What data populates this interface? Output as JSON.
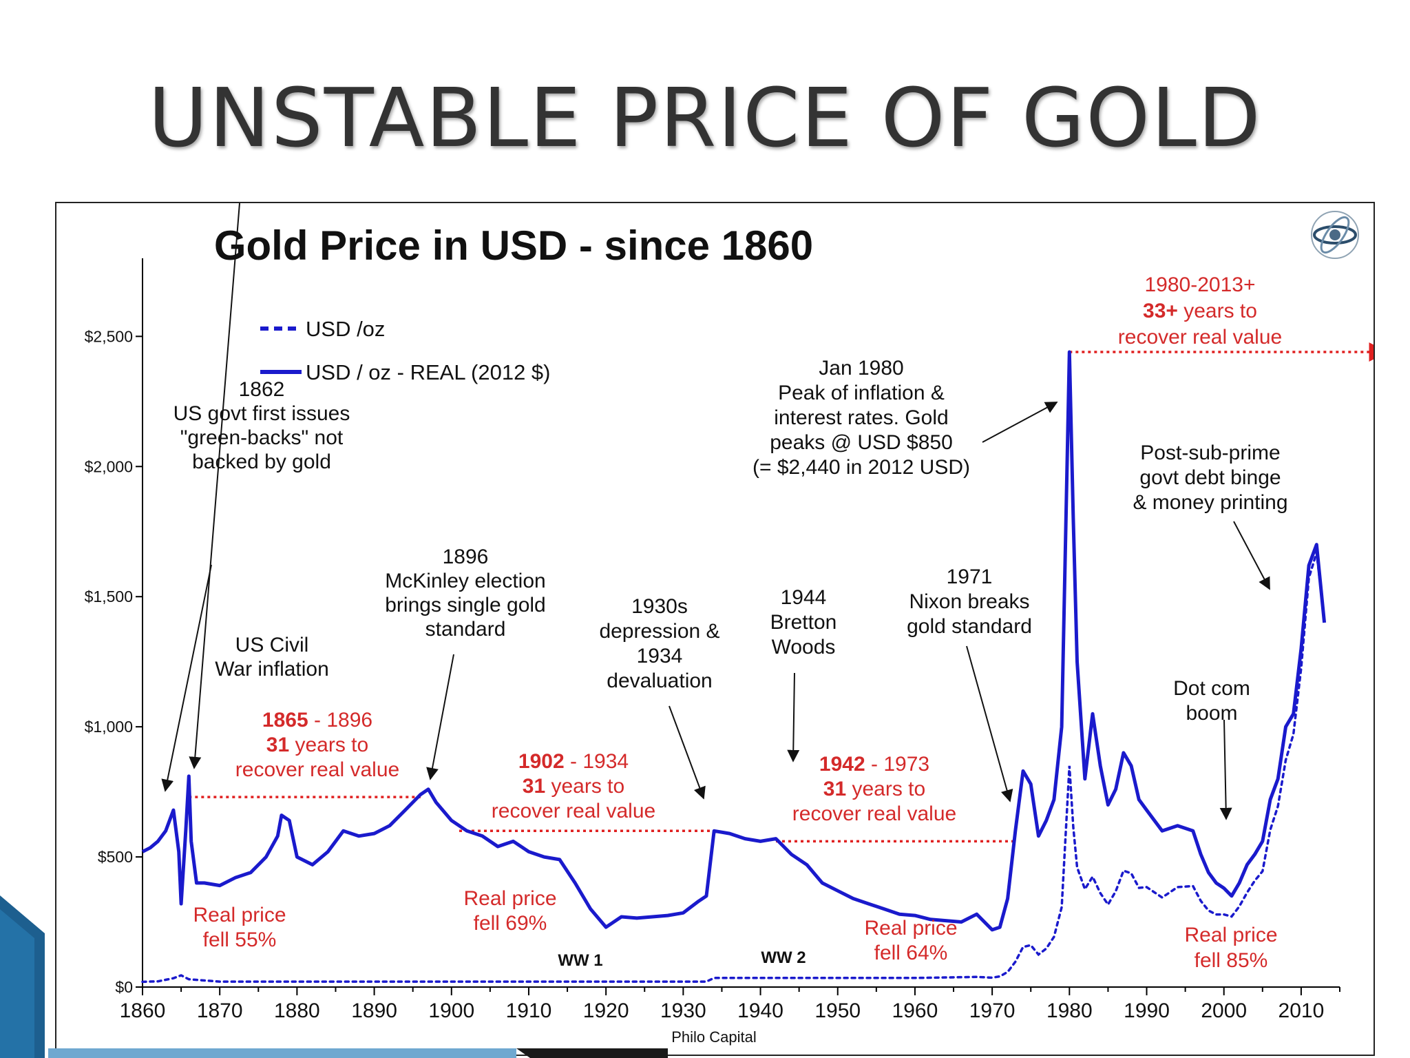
{
  "slide": {
    "title": "UNSTABLE PRICE OF GOLD"
  },
  "colors": {
    "series_real": "#1a1acc",
    "series_nominal": "#1a1acc",
    "annotation_red": "#d42a2a",
    "annotation_black": "#111111",
    "title_text": "#333333",
    "slide_accent": "#1d5f8f"
  },
  "icons": {
    "logo": "philo-capital-logo-icon"
  },
  "chart_data": {
    "type": "line",
    "title": "Gold Price in USD - since 1860",
    "source": "Philo Capital",
    "xlim": [
      1860,
      2015
    ],
    "ylim": [
      0,
      2800
    ],
    "x_ticks": [
      1860,
      1870,
      1880,
      1890,
      1900,
      1910,
      1920,
      1930,
      1940,
      1950,
      1960,
      1970,
      1980,
      1990,
      2000,
      2010
    ],
    "y_ticks": [
      {
        "value": 0,
        "label": "$0"
      },
      {
        "value": 500,
        "label": "$500"
      },
      {
        "value": 1000,
        "label": "$1,000"
      },
      {
        "value": 1500,
        "label": "$1,500"
      },
      {
        "value": 2000,
        "label": "$2,000"
      },
      {
        "value": 2500,
        "label": "$2,500"
      }
    ],
    "grid": false,
    "legend_position": "top-left",
    "series": [
      {
        "name": "USD /oz",
        "style": "dotted",
        "points": [
          [
            1860,
            20
          ],
          [
            1862,
            22
          ],
          [
            1864,
            34
          ],
          [
            1865,
            45
          ],
          [
            1866,
            30
          ],
          [
            1870,
            21
          ],
          [
            1880,
            21
          ],
          [
            1890,
            21
          ],
          [
            1900,
            21
          ],
          [
            1910,
            21
          ],
          [
            1920,
            21
          ],
          [
            1930,
            21
          ],
          [
            1933,
            21
          ],
          [
            1934,
            35
          ],
          [
            1940,
            35
          ],
          [
            1950,
            35
          ],
          [
            1960,
            35
          ],
          [
            1968,
            39
          ],
          [
            1970,
            36
          ],
          [
            1971,
            41
          ],
          [
            1972,
            58
          ],
          [
            1973,
            97
          ],
          [
            1974,
            154
          ],
          [
            1975,
            161
          ],
          [
            1976,
            125
          ],
          [
            1977,
            148
          ],
          [
            1978,
            193
          ],
          [
            1979,
            307
          ],
          [
            1980,
            850
          ],
          [
            1980.5,
            615
          ],
          [
            1981,
            460
          ],
          [
            1982,
            376
          ],
          [
            1983,
            424
          ],
          [
            1984,
            361
          ],
          [
            1985,
            317
          ],
          [
            1986,
            368
          ],
          [
            1987,
            447
          ],
          [
            1988,
            437
          ],
          [
            1989,
            381
          ],
          [
            1990,
            384
          ],
          [
            1992,
            344
          ],
          [
            1994,
            384
          ],
          [
            1996,
            388
          ],
          [
            1997,
            331
          ],
          [
            1998,
            294
          ],
          [
            1999,
            279
          ],
          [
            2000,
            279
          ],
          [
            2001,
            271
          ],
          [
            2002,
            310
          ],
          [
            2003,
            363
          ],
          [
            2004,
            409
          ],
          [
            2005,
            445
          ],
          [
            2006,
            604
          ],
          [
            2007,
            695
          ],
          [
            2008,
            872
          ],
          [
            2009,
            972
          ],
          [
            2010,
            1225
          ],
          [
            2011,
            1572
          ],
          [
            2012,
            1669
          ],
          [
            2013,
            1411
          ]
        ]
      },
      {
        "name": "USD / oz - REAL (2012 $)",
        "style": "solid",
        "points": [
          [
            1860,
            520
          ],
          [
            1861,
            535
          ],
          [
            1862,
            560
          ],
          [
            1863,
            600
          ],
          [
            1864,
            680
          ],
          [
            1864.7,
            520
          ],
          [
            1865,
            320
          ],
          [
            1865.6,
            600
          ],
          [
            1866,
            810
          ],
          [
            1866.3,
            560
          ],
          [
            1867,
            400
          ],
          [
            1868,
            400
          ],
          [
            1870,
            390
          ],
          [
            1872,
            420
          ],
          [
            1874,
            440
          ],
          [
            1876,
            500
          ],
          [
            1877.5,
            580
          ],
          [
            1878,
            660
          ],
          [
            1879,
            640
          ],
          [
            1880,
            500
          ],
          [
            1882,
            470
          ],
          [
            1884,
            520
          ],
          [
            1886,
            600
          ],
          [
            1888,
            580
          ],
          [
            1890,
            590
          ],
          [
            1892,
            620
          ],
          [
            1894,
            680
          ],
          [
            1896,
            740
          ],
          [
            1897,
            760
          ],
          [
            1898,
            710
          ],
          [
            1900,
            640
          ],
          [
            1902,
            600
          ],
          [
            1904,
            580
          ],
          [
            1906,
            540
          ],
          [
            1908,
            560
          ],
          [
            1910,
            520
          ],
          [
            1912,
            500
          ],
          [
            1914,
            490
          ],
          [
            1916,
            400
          ],
          [
            1918,
            300
          ],
          [
            1920,
            230
          ],
          [
            1922,
            270
          ],
          [
            1924,
            265
          ],
          [
            1926,
            270
          ],
          [
            1928,
            275
          ],
          [
            1930,
            285
          ],
          [
            1932,
            330
          ],
          [
            1933,
            350
          ],
          [
            1934,
            600
          ],
          [
            1936,
            590
          ],
          [
            1938,
            570
          ],
          [
            1940,
            560
          ],
          [
            1942,
            570
          ],
          [
            1944,
            510
          ],
          [
            1946,
            470
          ],
          [
            1948,
            400
          ],
          [
            1950,
            370
          ],
          [
            1952,
            340
          ],
          [
            1954,
            320
          ],
          [
            1956,
            300
          ],
          [
            1958,
            280
          ],
          [
            1960,
            275
          ],
          [
            1962,
            260
          ],
          [
            1964,
            255
          ],
          [
            1966,
            250
          ],
          [
            1968,
            280
          ],
          [
            1970,
            220
          ],
          [
            1971,
            230
          ],
          [
            1972,
            340
          ],
          [
            1973,
            600
          ],
          [
            1974,
            830
          ],
          [
            1975,
            780
          ],
          [
            1976,
            580
          ],
          [
            1977,
            640
          ],
          [
            1978,
            720
          ],
          [
            1979,
            1000
          ],
          [
            1980,
            2440
          ],
          [
            1980.5,
            1800
          ],
          [
            1981,
            1250
          ],
          [
            1982,
            800
          ],
          [
            1983,
            1050
          ],
          [
            1984,
            850
          ],
          [
            1985,
            700
          ],
          [
            1986,
            760
          ],
          [
            1987,
            900
          ],
          [
            1988,
            850
          ],
          [
            1989,
            720
          ],
          [
            1990,
            680
          ],
          [
            1992,
            600
          ],
          [
            1994,
            620
          ],
          [
            1996,
            600
          ],
          [
            1997,
            510
          ],
          [
            1998,
            440
          ],
          [
            1999,
            400
          ],
          [
            2000,
            380
          ],
          [
            2001,
            350
          ],
          [
            2002,
            400
          ],
          [
            2003,
            470
          ],
          [
            2004,
            510
          ],
          [
            2005,
            560
          ],
          [
            2006,
            720
          ],
          [
            2007,
            800
          ],
          [
            2008,
            1000
          ],
          [
            2009,
            1050
          ],
          [
            2010,
            1300
          ],
          [
            2011,
            1620
          ],
          [
            2012,
            1700
          ],
          [
            2013,
            1400
          ]
        ]
      }
    ],
    "annotations": [
      {
        "key": "a1862",
        "lines": [
          "1862",
          "US govt first issues",
          "\"green-backs\" not",
          "backed by gold"
        ],
        "color": "black"
      },
      {
        "key": "civil_war",
        "lines": [
          "US Civil",
          "War inflation"
        ],
        "color": "black"
      },
      {
        "key": "a1896",
        "lines": [
          "1896",
          "McKinley election",
          "brings single gold",
          "standard"
        ],
        "color": "black"
      },
      {
        "key": "a1930s",
        "lines": [
          "1930s",
          "depression &",
          "1934",
          "devaluation"
        ],
        "color": "black"
      },
      {
        "key": "a1944",
        "lines": [
          "1944",
          "Bretton",
          "Woods"
        ],
        "color": "black"
      },
      {
        "key": "a1971",
        "lines": [
          "1971",
          "Nixon breaks",
          "gold standard"
        ],
        "color": "black"
      },
      {
        "key": "jan1980",
        "lines": [
          "Jan 1980",
          "Peak of inflation &",
          "interest rates. Gold",
          "peaks @ USD $850",
          "(= $2,440 in 2012 USD)"
        ],
        "color": "black"
      },
      {
        "key": "postsub",
        "lines": [
          "Post-sub-prime",
          "govt debt binge",
          "& money printing"
        ],
        "color": "black"
      },
      {
        "key": "dotcom",
        "lines": [
          "Dot com",
          "boom"
        ],
        "color": "black"
      },
      {
        "key": "r1865",
        "lines": [
          "1865 - 1896",
          "31 years to",
          "recover real value"
        ],
        "color": "red"
      },
      {
        "key": "r1902",
        "lines": [
          "1902 - 1934",
          "31 years to",
          "recover real value"
        ],
        "color": "red"
      },
      {
        "key": "r1942",
        "lines": [
          "1942 - 1973",
          "31 years to",
          "recover real value"
        ],
        "color": "red"
      },
      {
        "key": "r1980",
        "lines": [
          "1980-2013+",
          "33+ years to",
          "recover real value"
        ],
        "color": "red"
      },
      {
        "key": "fell55",
        "lines": [
          "Real price",
          "fell 55%"
        ],
        "color": "red"
      },
      {
        "key": "fell69",
        "lines": [
          "Real price",
          "fell 69%"
        ],
        "color": "red"
      },
      {
        "key": "fell64",
        "lines": [
          "Real price",
          "fell 64%"
        ],
        "color": "red"
      },
      {
        "key": "fell85",
        "lines": [
          "Real price",
          "fell 85%"
        ],
        "color": "red"
      },
      {
        "key": "ww1",
        "lines": [
          "WW 1"
        ],
        "color": "black"
      },
      {
        "key": "ww2",
        "lines": [
          "WW 2"
        ],
        "color": "black"
      }
    ],
    "recovery_periods": [
      {
        "x_start": 1866,
        "x_end": 1896,
        "y": 730
      },
      {
        "x_start": 1901,
        "x_end": 1934,
        "y": 600
      },
      {
        "x_start": 1942,
        "x_end": 1973,
        "y": 560
      },
      {
        "x_start": 1980,
        "x_end": 2013,
        "y": 2440
      }
    ]
  }
}
